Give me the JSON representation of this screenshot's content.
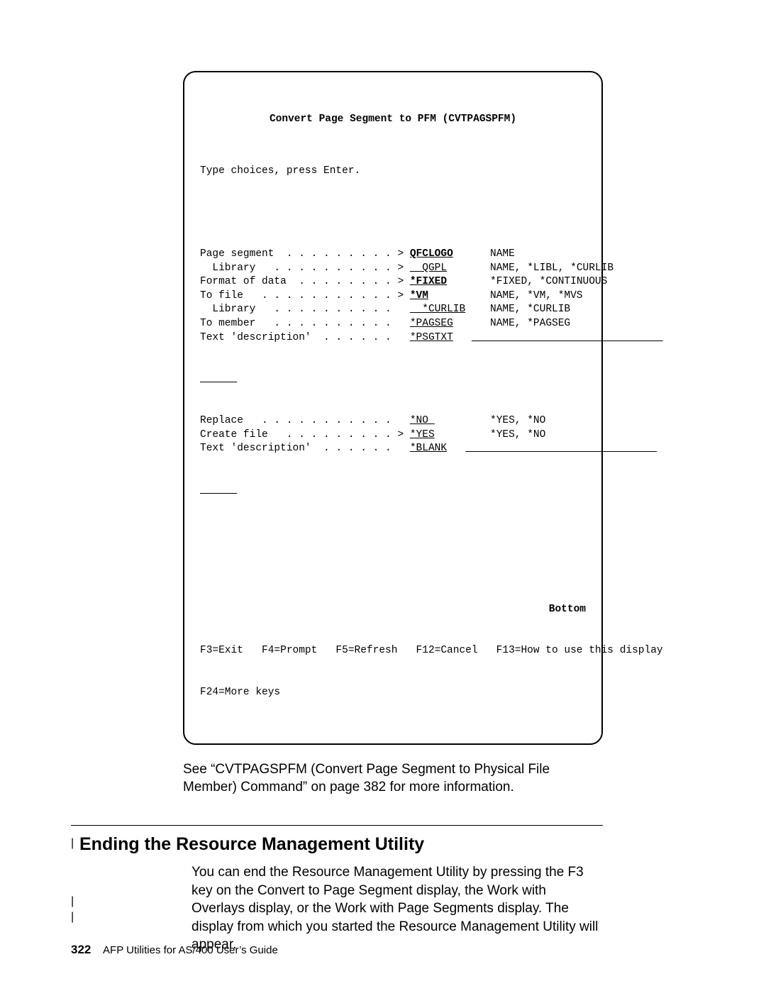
{
  "terminal": {
    "title": "Convert Page Segment to PFM (CVTPAGSPFM)",
    "instructions": "Type choices, press Enter.",
    "rows": [
      {
        "label": "Page segment  . . . . . . . . . >",
        "value": "QFCLOGO",
        "valueBold": true,
        "valuePad": "   ",
        "options": "NAME"
      },
      {
        "label": "  Library   . . . . . . . . . . >",
        "value": "  QGPL",
        "valueBold": false,
        "valuePad": "    ",
        "options": "NAME, *LIBL, *CURLIB"
      },
      {
        "label": "Format of data  . . . . . . . . >",
        "value": "*FIXED",
        "valueBold": true,
        "valuePad": "    ",
        "options": "*FIXED, *CONTINUOUS"
      },
      {
        "label": "To file   . . . . . . . . . . . >",
        "value": "*VM",
        "valueBold": true,
        "valuePad": "       ",
        "options": "NAME, *VM, *MVS"
      },
      {
        "label": "  Library   . . . . . . . . . .  ",
        "value": "  *CURLIB",
        "valueBold": false,
        "valuePad": " ",
        "options": "NAME, *CURLIB"
      },
      {
        "label": "To member   . . . . . . . . . .  ",
        "value": "*PAGSEG",
        "valueBold": false,
        "valuePad": "   ",
        "options": "NAME, *PAGSEG"
      },
      {
        "label": "Text 'description'  . . . . . .  ",
        "value": "*PSGTXT",
        "valueBold": false,
        "valuePad": "",
        "longline": true
      }
    ],
    "rows2": [
      {
        "label": "Replace   . . . . . . . . . . .  ",
        "value": "*NO ",
        "valuePad": "      ",
        "options": "*YES, *NO"
      },
      {
        "label": "Create file   . . . . . . . . . >",
        "value": "*YES",
        "valuePad": "      ",
        "options": "*YES, *NO"
      },
      {
        "label": "Text 'description'  . . . . . .  ",
        "value": "*BLANK",
        "valuePad": "",
        "longline": true
      }
    ],
    "bottomLabel": "Bottom",
    "fkeys1": "F3=Exit   F4=Prompt   F5=Refresh   F12=Cancel   F13=How to use this display",
    "fkeys2": "F24=More keys"
  },
  "caption": "See “CVTPAGSPFM (Convert Page Segment to Physical File Member) Command” on page 382 for more information.",
  "section": {
    "heading": "Ending the Resource Management Utility",
    "body": "You can end the Resource Management Utility by pressing the F3 key on the Convert to Page Segment display, the Work with Overlays display, or the Work with Page Segments display.  The display from which you started the Resource Management Utility will appear."
  },
  "footer": {
    "page": "322",
    "book": "AFP Utilities for AS/400 User’s Guide"
  }
}
